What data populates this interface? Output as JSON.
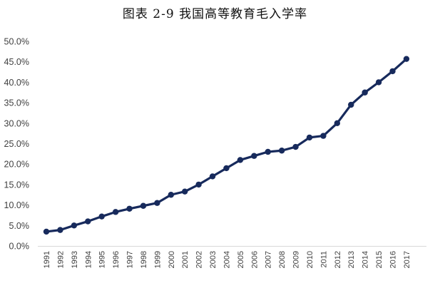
{
  "chart_data": {
    "type": "line",
    "title": "图表 2-9  我国高等教育毛入学率",
    "xlabel": "",
    "ylabel": "",
    "x": [
      "1991",
      "1992",
      "1993",
      "1994",
      "1995",
      "1996",
      "1997",
      "1998",
      "1999",
      "2000",
      "2001",
      "2002",
      "2003",
      "2004",
      "2005",
      "2006",
      "2007",
      "2008",
      "2009",
      "2010",
      "2011",
      "2012",
      "2013",
      "2014",
      "2015",
      "2016",
      "2017"
    ],
    "series": [
      {
        "name": "",
        "values": [
          3.5,
          3.9,
          5.0,
          6.0,
          7.2,
          8.3,
          9.1,
          9.8,
          10.5,
          12.5,
          13.3,
          15.0,
          17.0,
          19.0,
          21.0,
          22.0,
          23.0,
          23.3,
          24.2,
          26.5,
          26.9,
          30.0,
          34.5,
          37.5,
          40.0,
          42.7,
          45.7
        ],
        "color": "#172a5c"
      }
    ],
    "ylim": [
      0,
      50
    ],
    "yticks": [
      "0.0%",
      "5.0%",
      "10.0%",
      "15.0%",
      "20.0%",
      "25.0%",
      "30.0%",
      "35.0%",
      "40.0%",
      "45.0%",
      "50.0%"
    ],
    "grid": false,
    "legend": "none",
    "axis_color": "#d9d9d9"
  }
}
